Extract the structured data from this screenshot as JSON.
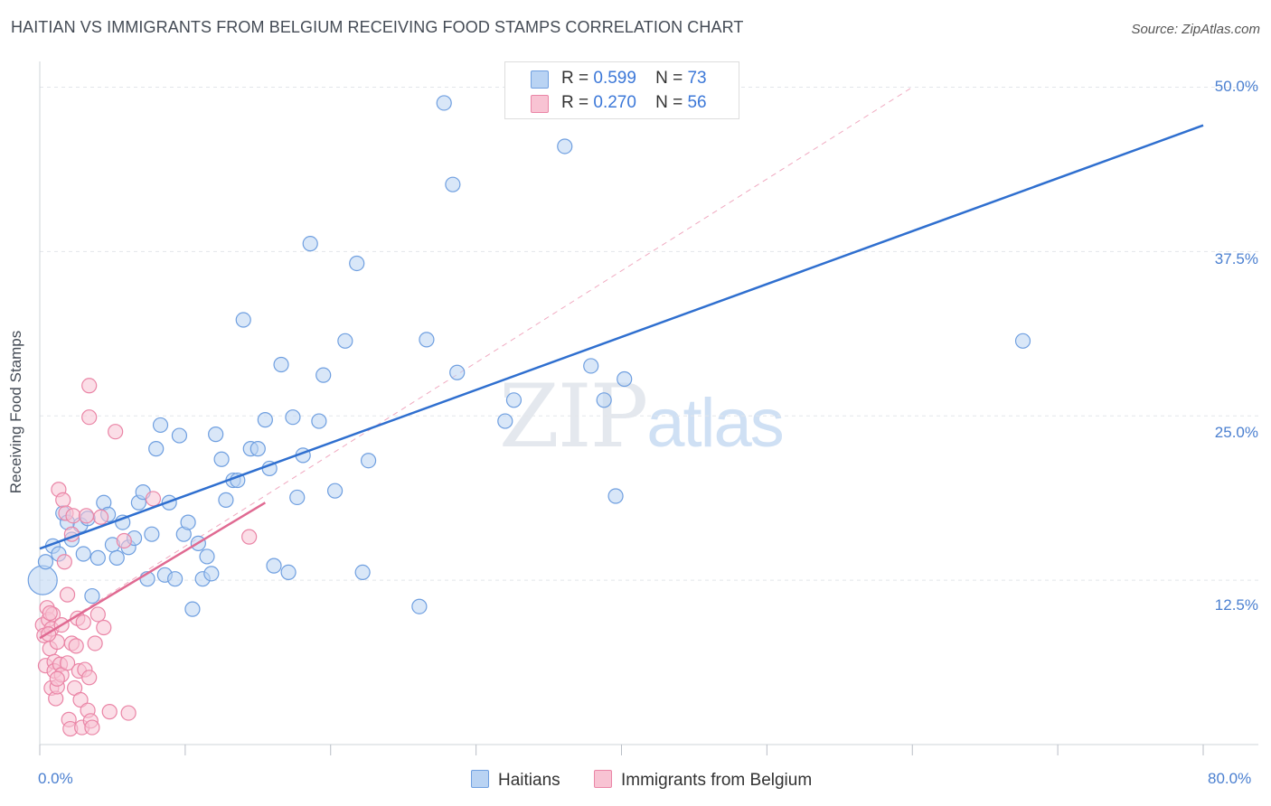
{
  "title": "HAITIAN VS IMMIGRANTS FROM BELGIUM RECEIVING FOOD STAMPS CORRELATION CHART",
  "source": "Source: ZipAtlas.com",
  "watermark": {
    "zip": "ZIP",
    "atlas": "atlas"
  },
  "legend_top": {
    "haitians": {
      "r_label": "R =",
      "r": "0.599",
      "n_label": "N =",
      "n": "73"
    },
    "belgium": {
      "r_label": "R =",
      "r": "0.270",
      "n_label": "N =",
      "n": "56"
    }
  },
  "legend_bottom": {
    "haitians": "Haitians",
    "belgium": "Immigrants from Belgium"
  },
  "colors": {
    "blue_fill": "#b9d3f3",
    "blue_stroke": "#6f9fe0",
    "blue_line": "#2f6fcf",
    "pink_fill": "#f8c3d3",
    "pink_stroke": "#ea85a6",
    "pink_line": "#e06a92",
    "grid": "#e3e6ea",
    "tick_text": "#4a7fd0"
  },
  "chart_data": {
    "type": "scatter",
    "title": "HAITIAN VS IMMIGRANTS FROM BELGIUM RECEIVING FOOD STAMPS CORRELATION CHART",
    "xlabel": "",
    "ylabel": "Receiving Food Stamps",
    "xlim": [
      0,
      80
    ],
    "ylim": [
      0,
      52
    ],
    "x_tick_labels": [
      "0.0%",
      "80.0%"
    ],
    "y_ticks": [
      12.5,
      25.0,
      37.5,
      50.0
    ],
    "y_tick_labels": [
      "12.5%",
      "25.0%",
      "37.5%",
      "50.0%"
    ],
    "series": [
      {
        "name": "Haitians",
        "r": 0.599,
        "n": 73,
        "trend": {
          "x": [
            0,
            80
          ],
          "y": [
            14.9,
            47.1
          ]
        },
        "points": [
          [
            0.2,
            12.5
          ],
          [
            0.4,
            13.9
          ],
          [
            0.9,
            15.1
          ],
          [
            1.3,
            14.5
          ],
          [
            1.6,
            17.6
          ],
          [
            1.9,
            16.9
          ],
          [
            2.2,
            15.6
          ],
          [
            2.8,
            16.7
          ],
          [
            3.0,
            14.5
          ],
          [
            3.3,
            17.2
          ],
          [
            3.6,
            11.3
          ],
          [
            4.0,
            14.2
          ],
          [
            4.4,
            18.4
          ],
          [
            4.7,
            17.5
          ],
          [
            5.0,
            15.2
          ],
          [
            5.3,
            14.2
          ],
          [
            5.7,
            16.9
          ],
          [
            6.1,
            15.0
          ],
          [
            6.5,
            15.7
          ],
          [
            6.8,
            18.4
          ],
          [
            7.1,
            19.2
          ],
          [
            7.4,
            12.6
          ],
          [
            7.7,
            16.0
          ],
          [
            8.0,
            22.5
          ],
          [
            8.3,
            24.3
          ],
          [
            8.6,
            12.9
          ],
          [
            8.9,
            18.4
          ],
          [
            9.3,
            12.6
          ],
          [
            9.6,
            23.5
          ],
          [
            9.9,
            16.0
          ],
          [
            10.2,
            16.9
          ],
          [
            10.5,
            10.3
          ],
          [
            10.9,
            15.3
          ],
          [
            11.2,
            12.6
          ],
          [
            11.5,
            14.3
          ],
          [
            11.8,
            13.0
          ],
          [
            12.1,
            23.6
          ],
          [
            12.5,
            21.7
          ],
          [
            12.8,
            18.6
          ],
          [
            13.3,
            20.1
          ],
          [
            13.6,
            20.1
          ],
          [
            14.0,
            32.3
          ],
          [
            14.5,
            22.5
          ],
          [
            15.0,
            22.5
          ],
          [
            15.5,
            24.7
          ],
          [
            15.8,
            21.0
          ],
          [
            16.1,
            13.6
          ],
          [
            16.6,
            28.9
          ],
          [
            17.1,
            13.1
          ],
          [
            17.4,
            24.9
          ],
          [
            17.7,
            18.8
          ],
          [
            18.1,
            22.0
          ],
          [
            18.6,
            38.1
          ],
          [
            19.2,
            24.6
          ],
          [
            19.5,
            28.1
          ],
          [
            20.3,
            19.3
          ],
          [
            21.0,
            30.7
          ],
          [
            21.8,
            36.6
          ],
          [
            22.2,
            13.1
          ],
          [
            22.6,
            21.6
          ],
          [
            26.1,
            10.5
          ],
          [
            26.6,
            30.8
          ],
          [
            27.8,
            48.8
          ],
          [
            28.4,
            42.6
          ],
          [
            28.7,
            28.3
          ],
          [
            32.0,
            24.6
          ],
          [
            32.6,
            26.2
          ],
          [
            36.1,
            45.5
          ],
          [
            37.9,
            28.8
          ],
          [
            38.8,
            26.2
          ],
          [
            39.6,
            18.9
          ],
          [
            40.2,
            27.8
          ],
          [
            67.6,
            30.7
          ]
        ]
      },
      {
        "name": "Immigrants from Belgium",
        "r": 0.27,
        "n": 56,
        "trend": {
          "x": [
            0,
            15.5
          ],
          "y": [
            8.1,
            18.4
          ]
        },
        "trend_extended": {
          "x": [
            0,
            60
          ],
          "y": [
            8.1,
            50.0
          ]
        },
        "points": [
          [
            0.2,
            9.1
          ],
          [
            0.3,
            8.3
          ],
          [
            0.4,
            6.0
          ],
          [
            0.5,
            10.4
          ],
          [
            0.6,
            9.5
          ],
          [
            0.7,
            7.3
          ],
          [
            0.8,
            8.8
          ],
          [
            0.8,
            4.3
          ],
          [
            0.9,
            9.9
          ],
          [
            1.0,
            6.3
          ],
          [
            1.0,
            5.6
          ],
          [
            1.1,
            3.5
          ],
          [
            1.2,
            7.8
          ],
          [
            1.2,
            4.4
          ],
          [
            1.3,
            19.4
          ],
          [
            1.4,
            6.1
          ],
          [
            1.5,
            9.1
          ],
          [
            1.5,
            5.3
          ],
          [
            1.6,
            18.6
          ],
          [
            1.7,
            13.9
          ],
          [
            1.8,
            17.6
          ],
          [
            1.9,
            6.2
          ],
          [
            2.0,
            1.9
          ],
          [
            2.1,
            1.2
          ],
          [
            2.2,
            16.0
          ],
          [
            2.2,
            7.7
          ],
          [
            2.3,
            17.4
          ],
          [
            2.4,
            4.3
          ],
          [
            2.5,
            7.5
          ],
          [
            2.6,
            9.6
          ],
          [
            2.7,
            5.6
          ],
          [
            2.8,
            3.4
          ],
          [
            2.9,
            1.3
          ],
          [
            3.0,
            9.3
          ],
          [
            3.1,
            5.7
          ],
          [
            3.2,
            17.4
          ],
          [
            3.3,
            2.6
          ],
          [
            3.4,
            5.1
          ],
          [
            3.5,
            1.8
          ],
          [
            3.6,
            1.3
          ],
          [
            3.8,
            7.7
          ],
          [
            4.0,
            9.9
          ],
          [
            4.2,
            17.3
          ],
          [
            4.4,
            8.9
          ],
          [
            4.8,
            2.5
          ],
          [
            5.2,
            23.8
          ],
          [
            5.8,
            15.5
          ],
          [
            6.1,
            2.4
          ],
          [
            3.4,
            27.3
          ],
          [
            3.4,
            24.9
          ],
          [
            0.7,
            10.0
          ],
          [
            1.2,
            5.0
          ],
          [
            7.8,
            18.7
          ],
          [
            14.4,
            15.8
          ],
          [
            1.9,
            11.4
          ],
          [
            0.6,
            8.4
          ]
        ]
      }
    ]
  }
}
